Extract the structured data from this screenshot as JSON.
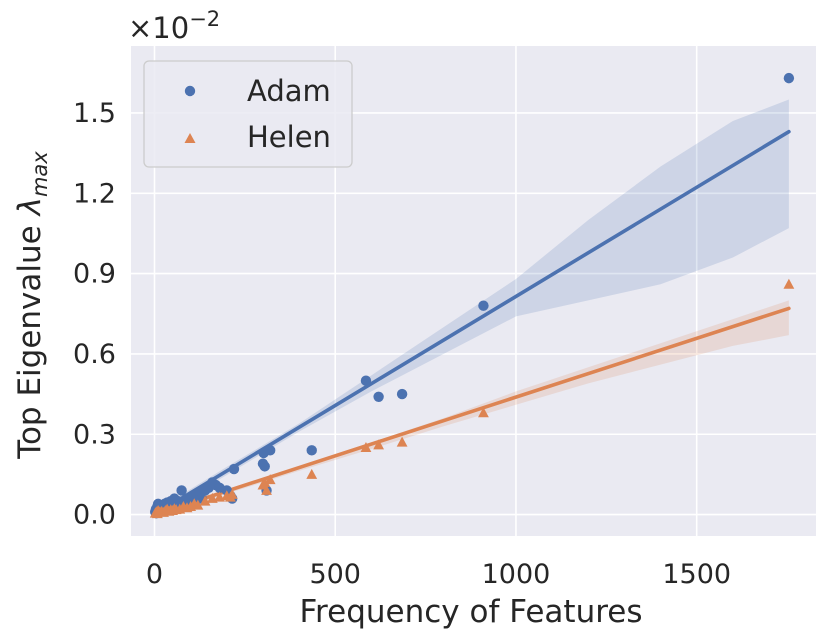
{
  "chart_data": {
    "type": "scatter",
    "xlabel": "Frequency of Features",
    "ylabel": "Top Eigenvalue",
    "ylabel_symbol": "λ",
    "ylabel_subscript": "max",
    "y_scale_text": "×10",
    "y_scale_exponent": "−2",
    "xlim": [
      -65,
      1830
    ],
    "ylim": [
      -0.08,
      1.75
    ],
    "x_ticks": [
      0,
      500,
      1000,
      1500
    ],
    "x_tick_labels": [
      "0",
      "500",
      "1000",
      "1500"
    ],
    "y_ticks": [
      0.0,
      0.3,
      0.6,
      0.9,
      1.2,
      1.5
    ],
    "y_tick_labels": [
      "0.0",
      "0.3",
      "0.6",
      "0.9",
      "1.2",
      "1.5"
    ],
    "grid": true,
    "legend_position": "top-left",
    "series": [
      {
        "name": "Adam",
        "marker": "circle",
        "color": "#4c72b0",
        "points": [
          [
            2,
            0.01
          ],
          [
            4,
            0.02
          ],
          [
            5,
            0.005
          ],
          [
            6,
            0.015
          ],
          [
            8,
            0.03
          ],
          [
            10,
            0.04
          ],
          [
            12,
            0.01
          ],
          [
            15,
            0.02
          ],
          [
            18,
            0.015
          ],
          [
            20,
            0.03
          ],
          [
            22,
            0.025
          ],
          [
            25,
            0.02
          ],
          [
            28,
            0.04
          ],
          [
            30,
            0.035
          ],
          [
            32,
            0.02
          ],
          [
            35,
            0.045
          ],
          [
            38,
            0.03
          ],
          [
            40,
            0.025
          ],
          [
            45,
            0.05
          ],
          [
            50,
            0.04
          ],
          [
            55,
            0.06
          ],
          [
            60,
            0.04
          ],
          [
            65,
            0.05
          ],
          [
            70,
            0.03
          ],
          [
            75,
            0.09
          ],
          [
            80,
            0.05
          ],
          [
            90,
            0.06
          ],
          [
            100,
            0.04
          ],
          [
            105,
            0.07
          ],
          [
            110,
            0.05
          ],
          [
            120,
            0.08
          ],
          [
            130,
            0.06
          ],
          [
            140,
            0.09
          ],
          [
            150,
            0.1
          ],
          [
            160,
            0.12
          ],
          [
            170,
            0.11
          ],
          [
            180,
            0.1
          ],
          [
            200,
            0.09
          ],
          [
            210,
            0.07
          ],
          [
            215,
            0.06
          ],
          [
            220,
            0.17
          ],
          [
            300,
            0.19
          ],
          [
            302,
            0.23
          ],
          [
            305,
            0.18
          ],
          [
            310,
            0.09
          ],
          [
            320,
            0.24
          ],
          [
            435,
            0.24
          ],
          [
            585,
            0.5
          ],
          [
            620,
            0.44
          ],
          [
            685,
            0.45
          ],
          [
            910,
            0.78
          ],
          [
            1755,
            1.63
          ]
        ],
        "fit": {
          "x": [
            0,
            1755
          ],
          "y": [
            0.0,
            1.43
          ]
        },
        "ci_band": {
          "x": [
            0,
            200,
            400,
            600,
            800,
            1000,
            1200,
            1400,
            1600,
            1755
          ],
          "lower": [
            -0.012,
            0.148,
            0.31,
            0.46,
            0.6,
            0.74,
            0.8,
            0.86,
            0.96,
            1.07
          ],
          "upper": [
            0.012,
            0.178,
            0.34,
            0.52,
            0.7,
            0.88,
            1.1,
            1.3,
            1.47,
            1.55
          ]
        }
      },
      {
        "name": "Helen",
        "marker": "triangle",
        "color": "#dd8452",
        "points": [
          [
            2,
            0.005
          ],
          [
            5,
            0.01
          ],
          [
            8,
            0.003
          ],
          [
            10,
            0.015
          ],
          [
            15,
            0.01
          ],
          [
            20,
            0.012
          ],
          [
            25,
            0.008
          ],
          [
            30,
            0.015
          ],
          [
            35,
            0.02
          ],
          [
            40,
            0.012
          ],
          [
            45,
            0.018
          ],
          [
            50,
            0.015
          ],
          [
            55,
            0.022
          ],
          [
            60,
            0.018
          ],
          [
            70,
            0.02
          ],
          [
            80,
            0.03
          ],
          [
            90,
            0.025
          ],
          [
            100,
            0.03
          ],
          [
            110,
            0.04
          ],
          [
            120,
            0.035
          ],
          [
            140,
            0.05
          ],
          [
            160,
            0.06
          ],
          [
            180,
            0.065
          ],
          [
            200,
            0.07
          ],
          [
            210,
            0.065
          ],
          [
            215,
            0.075
          ],
          [
            300,
            0.11
          ],
          [
            305,
            0.12
          ],
          [
            310,
            0.09
          ],
          [
            320,
            0.13
          ],
          [
            435,
            0.15
          ],
          [
            585,
            0.25
          ],
          [
            620,
            0.26
          ],
          [
            685,
            0.27
          ],
          [
            910,
            0.38
          ],
          [
            1755,
            0.86
          ]
        ],
        "fit": {
          "x": [
            0,
            1755
          ],
          "y": [
            0.0,
            0.77
          ]
        },
        "ci_band": {
          "x": [
            0,
            200,
            400,
            600,
            800,
            1000,
            1200,
            1400,
            1600,
            1755
          ],
          "lower": [
            -0.006,
            0.078,
            0.163,
            0.245,
            0.33,
            0.41,
            0.49,
            0.56,
            0.63,
            0.67
          ],
          "upper": [
            0.006,
            0.092,
            0.18,
            0.27,
            0.36,
            0.46,
            0.55,
            0.64,
            0.73,
            0.8
          ]
        }
      }
    ]
  }
}
